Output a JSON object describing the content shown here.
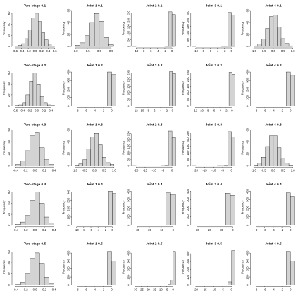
{
  "chart_data": [
    {
      "type": "histogram",
      "title": "Two-stage 0.1",
      "ylabel": "Frequency",
      "color": "#d3d3d3",
      "bins": [
        -0.6,
        -0.5,
        -0.4,
        -0.3,
        -0.2,
        -0.1,
        0,
        0.1,
        0.2,
        0.3,
        0.4,
        0.5,
        0.6
      ],
      "values": [
        1,
        2,
        5,
        14,
        30,
        52,
        60,
        45,
        25,
        12,
        4,
        1
      ],
      "xlim": [
        -0.65,
        0.65
      ],
      "ylim": [
        0,
        65
      ],
      "xticks": [
        -0.6,
        -0.4,
        -0.2,
        {
          "value": 0,
          "label": "0.0"
        },
        0.2,
        0.4,
        0.6
      ],
      "yticks": [
        0,
        20,
        40,
        60
      ]
    },
    {
      "type": "histogram",
      "title": "Joint 1 0.1",
      "ylabel": "Frequency",
      "color": "#d3d3d3",
      "bins": [
        -1,
        -0.8,
        -0.6,
        -0.4,
        -0.2,
        0,
        0.2,
        0.4,
        0.6
      ],
      "values": [
        2,
        6,
        18,
        40,
        55,
        42,
        15,
        3
      ],
      "xlim": [
        -1.1,
        0.7
      ],
      "ylim": [
        0,
        60
      ],
      "xticks": [
        {
          "value": -1,
          "label": "-1.0"
        },
        -0.5,
        {
          "value": 0,
          "label": "0.0"
        },
        0.5
      ],
      "yticks": [
        0,
        20,
        40,
        60
      ]
    },
    {
      "type": "histogram",
      "title": "Joint 2 0.1",
      "ylabel": "Frequency",
      "color": "#d3d3d3",
      "bins": [
        -11,
        -10,
        -9,
        -8,
        -7,
        -6,
        -5,
        -4,
        -3,
        -2,
        -1,
        0,
        1
      ],
      "values": [
        1,
        0,
        0,
        0,
        0,
        0,
        0,
        0,
        0,
        1,
        260,
        240
      ],
      "xlim": [
        -11,
        1
      ],
      "ylim": [
        0,
        270
      ],
      "xticks": [
        -10,
        -8,
        -6,
        -4,
        -2,
        0
      ],
      "yticks": [
        0,
        50,
        100,
        150,
        200,
        250
      ]
    },
    {
      "type": "histogram",
      "title": "Joint 3 0.1",
      "ylabel": "Frequency",
      "color": "#d3d3d3",
      "bins": [
        -11,
        -10,
        -9,
        -8,
        -7,
        -6,
        -5,
        -4,
        -3,
        -2,
        -1,
        0,
        1
      ],
      "values": [
        1,
        0,
        0,
        0,
        0,
        0,
        0,
        0,
        1,
        2,
        255,
        235
      ],
      "xlim": [
        -11,
        1
      ],
      "ylim": [
        0,
        270
      ],
      "xticks": [
        -10,
        -8,
        -6,
        -4,
        -2,
        0
      ],
      "yticks": [
        0,
        50,
        100,
        150,
        200,
        250
      ]
    },
    {
      "type": "histogram",
      "title": "Joint 4 0.1",
      "ylabel": "Frequency",
      "color": "#d3d3d3",
      "bins": [
        -1,
        -0.8,
        -0.6,
        -0.4,
        -0.2,
        0,
        0.2,
        0.4,
        0.6,
        0.8,
        1
      ],
      "values": [
        1,
        4,
        12,
        30,
        50,
        52,
        32,
        13,
        5,
        1
      ],
      "xlim": [
        -1.1,
        1.1
      ],
      "ylim": [
        0,
        60
      ],
      "xticks": [
        {
          "value": -1,
          "label": "-1.0"
        },
        -0.5,
        {
          "value": 0,
          "label": "0.0"
        },
        0.5,
        {
          "value": 1,
          "label": "1.0"
        }
      ],
      "yticks": [
        0,
        20,
        40,
        60
      ]
    },
    {
      "type": "histogram",
      "title": "Two-stage 0.2",
      "ylabel": "Frequency",
      "color": "#d3d3d3",
      "bins": [
        -0.6,
        -0.5,
        -0.4,
        -0.3,
        -0.2,
        -0.1,
        0,
        0.1,
        0.2,
        0.3,
        0.4,
        0.5
      ],
      "values": [
        1,
        2,
        6,
        20,
        45,
        60,
        40,
        18,
        6,
        2,
        1
      ],
      "xlim": [
        -0.65,
        0.55
      ],
      "ylim": [
        0,
        65
      ],
      "xticks": [
        -0.6,
        -0.4,
        -0.2,
        {
          "value": 0,
          "label": "0.0"
        },
        0.2,
        0.4
      ],
      "yticks": [
        0,
        20,
        40,
        60
      ]
    },
    {
      "type": "histogram",
      "title": "Joint 1 0.2",
      "ylabel": "Frequency",
      "color": "#d3d3d3",
      "bins": [
        -9,
        -8,
        -7,
        -6,
        -5,
        -4,
        -3,
        -2,
        -1,
        0,
        1
      ],
      "values": [
        1,
        0,
        0,
        0,
        0,
        0,
        0,
        0,
        400,
        370
      ],
      "xlim": [
        -9,
        1
      ],
      "ylim": [
        0,
        420
      ],
      "xticks": [
        -8,
        -6,
        -4,
        -2,
        0
      ],
      "yticks": [
        0,
        100,
        200,
        300,
        400
      ]
    },
    {
      "type": "histogram",
      "title": "Joint 2 0.2",
      "ylabel": "Frequency",
      "color": "#d3d3d3",
      "bins": [
        -13,
        -12,
        -11,
        -10,
        -9,
        -8,
        -7,
        -6,
        -5,
        -4,
        -3,
        -2,
        -1,
        0,
        1
      ],
      "values": [
        1,
        0,
        0,
        0,
        0,
        0,
        0,
        0,
        0,
        0,
        0,
        1,
        260,
        245
      ],
      "xlim": [
        -13,
        1
      ],
      "ylim": [
        0,
        270
      ],
      "xticks": [
        -12,
        -10,
        -8,
        -6,
        -4,
        -2,
        0
      ],
      "yticks": [
        0,
        50,
        100,
        150,
        200,
        250
      ]
    },
    {
      "type": "histogram",
      "title": "Joint 3 0.2",
      "ylabel": "Frequency",
      "color": "#d3d3d3",
      "bins": [
        -13,
        -12,
        -11,
        -10,
        -9,
        -8,
        -7,
        -6,
        -5,
        -4,
        -3,
        -2,
        -1,
        0,
        1
      ],
      "values": [
        1,
        0,
        0,
        0,
        0,
        0,
        0,
        0,
        0,
        0,
        1,
        2,
        255,
        240
      ],
      "xlim": [
        -13,
        1
      ],
      "ylim": [
        0,
        270
      ],
      "xticks": [
        -12,
        -10,
        -8,
        -6,
        -4,
        -2,
        0
      ],
      "yticks": [
        0,
        50,
        100,
        150,
        200,
        250
      ]
    },
    {
      "type": "histogram",
      "title": "Joint 4 0.2",
      "ylabel": "Frequency",
      "color": "#d3d3d3",
      "bins": [
        -9,
        -8,
        -7,
        -6,
        -5,
        -4,
        -3,
        -2,
        -1,
        0,
        1
      ],
      "values": [
        1,
        0,
        0,
        0,
        0,
        0,
        0,
        1,
        400,
        360
      ],
      "xlim": [
        -9,
        1
      ],
      "ylim": [
        0,
        420
      ],
      "xticks": [
        -8,
        -6,
        -4,
        -2,
        0
      ],
      "yticks": [
        0,
        100,
        200,
        300,
        400
      ]
    },
    {
      "type": "histogram",
      "title": "Two-stage 0.3",
      "ylabel": "Frequency",
      "color": "#d3d3d3",
      "bins": [
        -0.4,
        -0.3,
        -0.2,
        -0.1,
        0,
        0.1,
        0.2,
        0.3,
        0.4
      ],
      "values": [
        2,
        8,
        25,
        50,
        55,
        30,
        10,
        2
      ],
      "xlim": [
        -0.45,
        0.45
      ],
      "ylim": [
        0,
        60
      ],
      "xticks": [
        -0.4,
        -0.2,
        {
          "value": 0,
          "label": "0.0"
        },
        0.2,
        0.4
      ],
      "yticks": [
        0,
        20,
        40,
        60
      ]
    },
    {
      "type": "histogram",
      "title": "Joint 1 0.3",
      "ylabel": "Frequency",
      "color": "#d3d3d3",
      "bins": [
        -1,
        -0.8,
        -0.6,
        -0.4,
        -0.2,
        0,
        0.2,
        0.4,
        0.6,
        0.8,
        1
      ],
      "values": [
        1,
        3,
        10,
        28,
        48,
        54,
        35,
        14,
        5,
        2
      ],
      "xlim": [
        -1.1,
        1.1
      ],
      "ylim": [
        0,
        60
      ],
      "xticks": [
        {
          "value": -1,
          "label": "-1.0"
        },
        -0.5,
        {
          "value": 0,
          "label": "0.0"
        },
        0.5,
        {
          "value": 1,
          "label": "1.0"
        }
      ],
      "yticks": [
        0,
        20,
        40,
        60
      ]
    },
    {
      "type": "histogram",
      "title": "Joint 2 0.3",
      "ylabel": "Frequency",
      "color": "#d3d3d3",
      "bins": [
        -22,
        -20,
        -18,
        -16,
        -14,
        -12,
        -10,
        -8,
        -6,
        -4,
        -2,
        0,
        2
      ],
      "values": [
        1,
        0,
        0,
        0,
        0,
        0,
        0,
        0,
        1,
        2,
        270,
        220
      ],
      "xlim": [
        -22,
        2
      ],
      "ylim": [
        0,
        280
      ],
      "xticks": [
        -20,
        -15,
        -10,
        -5,
        0
      ],
      "yticks": [
        0,
        50,
        100,
        150,
        200,
        250
      ]
    },
    {
      "type": "histogram",
      "title": "Joint 3 0.3",
      "ylabel": "Frequency",
      "color": "#d3d3d3",
      "bins": [
        -22,
        -20,
        -18,
        -16,
        -14,
        -12,
        -10,
        -8,
        -6,
        -4,
        -2,
        0,
        2
      ],
      "values": [
        1,
        0,
        0,
        0,
        0,
        0,
        0,
        1,
        1,
        3,
        265,
        225
      ],
      "xlim": [
        -22,
        2
      ],
      "ylim": [
        0,
        280
      ],
      "xticks": [
        -20,
        -15,
        -10,
        -5,
        0
      ],
      "yticks": [
        0,
        50,
        100,
        150,
        200,
        250
      ]
    },
    {
      "type": "histogram",
      "title": "Joint 4 0.3",
      "ylabel": "Frequency",
      "color": "#d3d3d3",
      "bins": [
        -1,
        -0.8,
        -0.6,
        -0.4,
        -0.2,
        0,
        0.2,
        0.4,
        0.6,
        0.8,
        1
      ],
      "values": [
        1,
        4,
        14,
        32,
        50,
        50,
        30,
        12,
        4,
        1
      ],
      "xlim": [
        -1.1,
        1.1
      ],
      "ylim": [
        0,
        60
      ],
      "xticks": [
        {
          "value": -1,
          "label": "-1.0"
        },
        -0.5,
        {
          "value": 0,
          "label": "0.0"
        },
        0.5,
        {
          "value": 1,
          "label": "1.0"
        }
      ],
      "yticks": [
        0,
        20,
        40,
        60
      ]
    },
    {
      "type": "histogram",
      "title": "Two-stage 0.4",
      "ylabel": "Frequency",
      "color": "#d3d3d3",
      "bins": [
        -0.4,
        -0.3,
        -0.2,
        -0.1,
        0,
        0.1,
        0.2,
        0.3,
        0.4
      ],
      "values": [
        2,
        6,
        18,
        45,
        60,
        40,
        15,
        4
      ],
      "xlim": [
        -0.45,
        0.45
      ],
      "ylim": [
        0,
        65
      ],
      "xticks": [
        -0.4,
        -0.2,
        {
          "value": 0,
          "label": "0.0"
        },
        0.2,
        0.4
      ],
      "yticks": [
        0,
        20,
        40,
        60
      ]
    },
    {
      "type": "histogram",
      "title": "Joint 1 0.4",
      "ylabel": "Frequency",
      "color": "#d3d3d3",
      "bins": [
        -11,
        -10,
        -9,
        -8,
        -7,
        -6,
        -5,
        -4,
        -3,
        -2,
        -1,
        0,
        1
      ],
      "values": [
        1,
        0,
        0,
        0,
        0,
        0,
        0,
        0,
        0,
        1,
        410,
        380
      ],
      "xlim": [
        -11,
        1
      ],
      "ylim": [
        0,
        430
      ],
      "xticks": [
        -10,
        -8,
        -6,
        -4,
        -2,
        0
      ],
      "yticks": [
        0,
        100,
        200,
        300,
        400
      ]
    },
    {
      "type": "histogram",
      "title": "Joint 2 0.4",
      "ylabel": "Frequency",
      "color": "#d3d3d3",
      "bins": [
        -34,
        -30,
        -26,
        -22,
        -18,
        -14,
        -10,
        -6,
        -2,
        2
      ],
      "values": [
        1,
        0,
        0,
        0,
        0,
        0,
        1,
        380,
        360
      ],
      "xlim": [
        -34,
        2
      ],
      "ylim": [
        0,
        420
      ],
      "xticks": [
        -30,
        -20,
        -10,
        0
      ],
      "yticks": [
        0,
        100,
        200,
        300,
        400
      ]
    },
    {
      "type": "histogram",
      "title": "Joint 3 0.4",
      "ylabel": "Frequency",
      "color": "#d3d3d3",
      "bins": [
        -34,
        -30,
        -26,
        -22,
        -18,
        -14,
        -10,
        -6,
        -2,
        2
      ],
      "values": [
        1,
        0,
        0,
        0,
        0,
        0,
        2,
        375,
        350
      ],
      "xlim": [
        -34,
        2
      ],
      "ylim": [
        0,
        420
      ],
      "xticks": [
        -30,
        -20,
        -10,
        0
      ],
      "yticks": [
        0,
        100,
        200,
        300,
        400
      ]
    },
    {
      "type": "histogram",
      "title": "Joint 4 0.4",
      "ylabel": "Frequency",
      "color": "#d3d3d3",
      "bins": [
        -9,
        -8,
        -7,
        -6,
        -5,
        -4,
        -3,
        -2,
        -1,
        0,
        1
      ],
      "values": [
        1,
        0,
        0,
        0,
        0,
        0,
        1,
        3,
        380,
        340
      ],
      "xlim": [
        -9,
        1
      ],
      "ylim": [
        0,
        420
      ],
      "xticks": [
        -8,
        -6,
        -4,
        -2,
        0
      ],
      "yticks": [
        0,
        100,
        200,
        300,
        400
      ]
    },
    {
      "type": "histogram",
      "title": "Two-stage 0.5",
      "ylabel": "Frequency",
      "color": "#d3d3d3",
      "bins": [
        -0.4,
        -0.3,
        -0.2,
        -0.1,
        0,
        0.1,
        0.2,
        0.3,
        0.4
      ],
      "values": [
        1,
        5,
        20,
        48,
        58,
        38,
        14,
        3
      ],
      "xlim": [
        -0.45,
        0.45
      ],
      "ylim": [
        0,
        65
      ],
      "xticks": [
        -0.4,
        -0.2,
        {
          "value": 0,
          "label": "0.0"
        },
        0.2,
        0.4
      ],
      "yticks": [
        0,
        20,
        40,
        60
      ]
    },
    {
      "type": "histogram",
      "title": "Joint 1 0.5",
      "ylabel": "Frequency",
      "color": "#d3d3d3",
      "bins": [
        -9,
        -8,
        -7,
        -6,
        -5,
        -4,
        -3,
        -2,
        -1,
        0,
        1
      ],
      "values": [
        1,
        0,
        0,
        0,
        0,
        0,
        0,
        1,
        420,
        300
      ],
      "xlim": [
        -9,
        1
      ],
      "ylim": [
        0,
        450
      ],
      "xticks": [
        -8,
        -6,
        -4,
        -2,
        0
      ],
      "yticks": [
        0,
        100,
        200,
        300,
        400
      ]
    },
    {
      "type": "histogram",
      "title": "Joint 2 0.5",
      "ylabel": "Frequency",
      "color": "#d3d3d3",
      "bins": [
        -32,
        -30,
        -28,
        -26,
        -24,
        -22,
        -20,
        -18,
        -16,
        -14,
        -12,
        -10,
        -8,
        -6,
        -4,
        -2,
        0,
        2
      ],
      "values": [
        1,
        0,
        0,
        0,
        0,
        0,
        0,
        0,
        0,
        0,
        0,
        0,
        1,
        2,
        5,
        60,
        420
      ],
      "xlim": [
        -32,
        2
      ],
      "ylim": [
        0,
        450
      ],
      "xticks": [
        -30,
        -25,
        -20,
        -15,
        -10,
        -5,
        0
      ],
      "yticks": [
        0,
        100,
        200,
        300,
        400
      ]
    },
    {
      "type": "histogram",
      "title": "Joint 3 0.5",
      "ylabel": "Frequency",
      "color": "#d3d3d3",
      "bins": [
        -22,
        -20,
        -18,
        -16,
        -14,
        -12,
        -10,
        -8,
        -6,
        -4,
        -2,
        0,
        2
      ],
      "values": [
        1,
        0,
        0,
        0,
        0,
        0,
        0,
        0,
        1,
        2,
        40,
        440
      ],
      "xlim": [
        -22,
        2
      ],
      "ylim": [
        0,
        460
      ],
      "xticks": [
        -20,
        -15,
        -10,
        -5,
        0
      ],
      "yticks": [
        0,
        100,
        200,
        300,
        400
      ]
    },
    {
      "type": "histogram",
      "title": "Joint 4 0.5",
      "ylabel": "Frequency",
      "color": "#d3d3d3",
      "bins": [
        -9,
        -8,
        -7,
        -6,
        -5,
        -4,
        -3,
        -2,
        -1,
        0,
        1
      ],
      "values": [
        1,
        0,
        0,
        0,
        0,
        0,
        0,
        1,
        420,
        300
      ],
      "xlim": [
        -9,
        1
      ],
      "ylim": [
        0,
        450
      ],
      "xticks": [
        -8,
        -6,
        -4,
        -2,
        0
      ],
      "yticks": [
        0,
        100,
        200,
        300,
        400
      ]
    }
  ]
}
